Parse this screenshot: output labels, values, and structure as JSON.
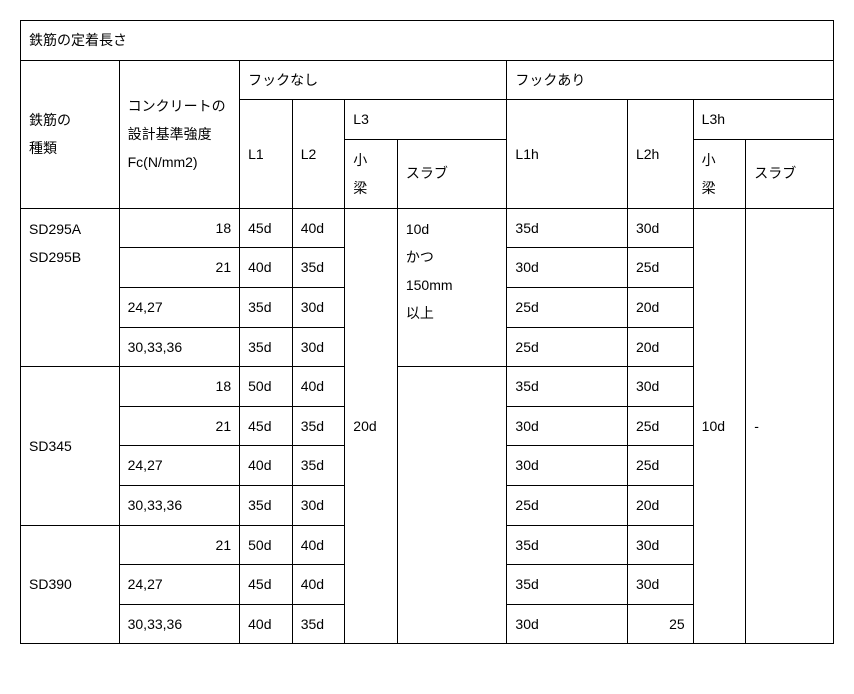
{
  "title": "鉄筋の定着長さ",
  "header": {
    "col_type": "鉄筋の\n種類",
    "col_concrete": "コンクリートの\n設計基準強度\nFc(N/mm2)",
    "hook_no": "フックなし",
    "hook_yes": "フックあり",
    "l1": "L1",
    "l2": "L2",
    "l3": "L3",
    "l1h": "L1h",
    "l2h": "L2h",
    "l3h": "L3h",
    "kobari": "小\n梁",
    "slab": "スラブ",
    "kobari2": "小\n梁",
    "slab2": "スラブ"
  },
  "groups": [
    {
      "name": "SD295A\nSD295B",
      "rows": [
        {
          "fc": "18",
          "fc_align": "right",
          "l1": "45d",
          "l2": "40d",
          "l1h": "35d",
          "l2h": "30d"
        },
        {
          "fc": "21",
          "fc_align": "right",
          "l1": "40d",
          "l2": "35d",
          "l1h": "30d",
          "l2h": "25d"
        },
        {
          "fc": "24,27",
          "fc_align": "left",
          "l1": "35d",
          "l2": "30d",
          "l1h": "25d",
          "l2h": "20d"
        },
        {
          "fc": "30,33,36",
          "fc_align": "left",
          "l1": "35d",
          "l2": "30d",
          "l1h": "25d",
          "l2h": "20d"
        }
      ]
    },
    {
      "name": "SD345",
      "rows": [
        {
          "fc": "18",
          "fc_align": "right",
          "l1": "50d",
          "l2": "40d",
          "l1h": "35d",
          "l2h": "30d"
        },
        {
          "fc": "21",
          "fc_align": "right",
          "l1": "45d",
          "l2": "35d",
          "l1h": "30d",
          "l2h": "25d"
        },
        {
          "fc": "24,27",
          "fc_align": "left",
          "l1": "40d",
          "l2": "35d",
          "l1h": "30d",
          "l2h": "25d"
        },
        {
          "fc": "30,33,36",
          "fc_align": "left",
          "l1": "35d",
          "l2": "30d",
          "l1h": "25d",
          "l2h": "20d"
        }
      ]
    },
    {
      "name": "SD390",
      "rows": [
        {
          "fc": "21",
          "fc_align": "right",
          "l1": "50d",
          "l2": "40d",
          "l1h": "35d",
          "l2h": "30d"
        },
        {
          "fc": "24,27",
          "fc_align": "left",
          "l1": "45d",
          "l2": "40d",
          "l1h": "35d",
          "l2h": "30d"
        },
        {
          "fc": "30,33,36",
          "fc_align": "left",
          "l1": "40d",
          "l2": "35d",
          "l1h": "30d",
          "l2h_right": "25"
        }
      ]
    }
  ],
  "spans": {
    "l3_kobari": "20d",
    "l3_slab": "10d\nかつ\n150mm\n以上",
    "l3h_kobari": "10d",
    "l3h_slab": "-"
  },
  "colors": {
    "border": "#000000",
    "text": "#000000",
    "background": "#ffffff"
  },
  "col_widths": [
    "90",
    "110",
    "48",
    "48",
    "48",
    "100",
    "110",
    "60",
    "48",
    "80"
  ]
}
